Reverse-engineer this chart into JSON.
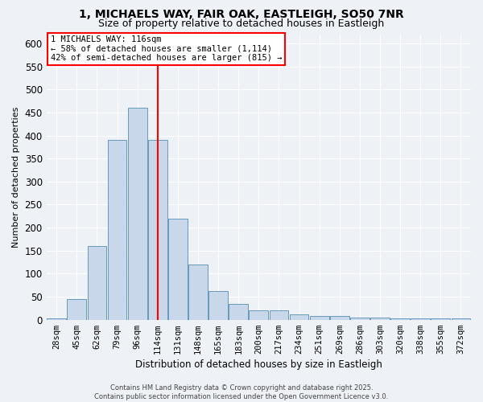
{
  "title1": "1, MICHAELS WAY, FAIR OAK, EASTLEIGH, SO50 7NR",
  "title2": "Size of property relative to detached houses in Eastleigh",
  "xlabel": "Distribution of detached houses by size in Eastleigh",
  "ylabel": "Number of detached properties",
  "categories": [
    "28sqm",
    "45sqm",
    "62sqm",
    "79sqm",
    "96sqm",
    "114sqm",
    "131sqm",
    "148sqm",
    "165sqm",
    "183sqm",
    "200sqm",
    "217sqm",
    "234sqm",
    "251sqm",
    "269sqm",
    "286sqm",
    "303sqm",
    "320sqm",
    "338sqm",
    "355sqm",
    "372sqm"
  ],
  "values": [
    3,
    45,
    160,
    390,
    460,
    390,
    220,
    120,
    63,
    35,
    20,
    20,
    12,
    8,
    8,
    4,
    4,
    3,
    3,
    3,
    3
  ],
  "bar_color": "#c8d8ea",
  "bar_edgecolor": "#6699bb",
  "vline_index": 5,
  "vline_color": "red",
  "ylim": [
    0,
    620
  ],
  "yticks": [
    0,
    50,
    100,
    150,
    200,
    250,
    300,
    350,
    400,
    450,
    500,
    550,
    600
  ],
  "annotation_text": "1 MICHAELS WAY: 116sqm\n← 58% of detached houses are smaller (1,114)\n42% of semi-detached houses are larger (815) →",
  "annotation_box_facecolor": "white",
  "annotation_box_edgecolor": "red",
  "footer_text": "Contains HM Land Registry data © Crown copyright and database right 2025.\nContains public sector information licensed under the Open Government Licence v3.0.",
  "bg_color": "#eef2f7",
  "grid_color": "white",
  "title1_fontsize": 10,
  "title2_fontsize": 9
}
